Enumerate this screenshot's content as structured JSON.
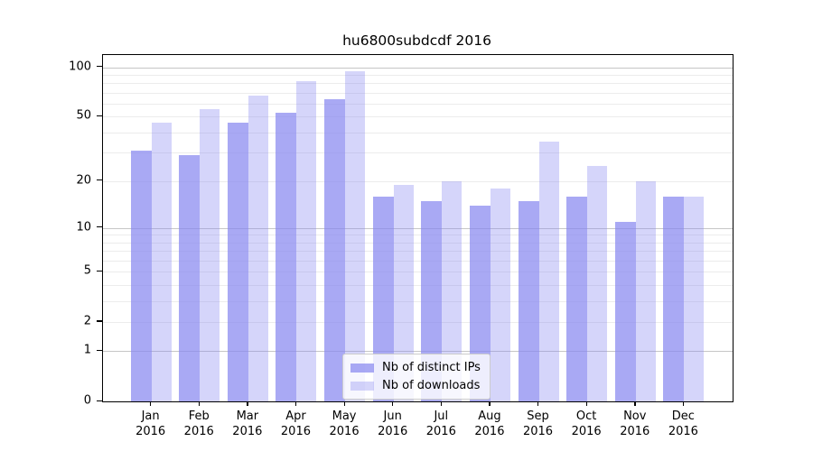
{
  "title": "hu6800subdcdf 2016",
  "chart_data": {
    "type": "bar",
    "title": "hu6800subdcdf 2016",
    "categories": [
      "Jan",
      "Feb",
      "Mar",
      "Apr",
      "May",
      "Jun",
      "Jul",
      "Aug",
      "Sep",
      "Oct",
      "Nov",
      "Dec"
    ],
    "year": "2016",
    "series": [
      {
        "name": "Nb of distinct IPs",
        "color": "rgba(136,136,240,0.72)",
        "values": [
          31,
          29,
          46,
          53,
          64,
          16,
          15,
          14,
          15,
          16,
          11,
          16
        ]
      },
      {
        "name": "Nb of downloads",
        "color": "rgba(136,136,240,0.35)",
        "values": [
          46,
          56,
          67,
          82,
          95,
          19,
          20,
          18,
          35,
          25,
          20,
          16
        ]
      }
    ],
    "xlabel": "",
    "ylabel": "",
    "yscale": "log1p",
    "ylim": [
      0,
      118.75
    ],
    "yticks": [
      0,
      1,
      2,
      5,
      10,
      20,
      50,
      100
    ],
    "grid_major": [
      1,
      10,
      100
    ],
    "grid_minor": [
      2,
      3,
      4,
      5,
      6,
      7,
      8,
      9,
      20,
      30,
      40,
      50,
      60,
      70,
      80,
      90
    ],
    "legend_position": "lower-center",
    "colors": {
      "frame": "#000000",
      "grid_minor": "#ececec",
      "grid_major": "#c6c6c6",
      "legend_border": "#cccccc"
    }
  }
}
